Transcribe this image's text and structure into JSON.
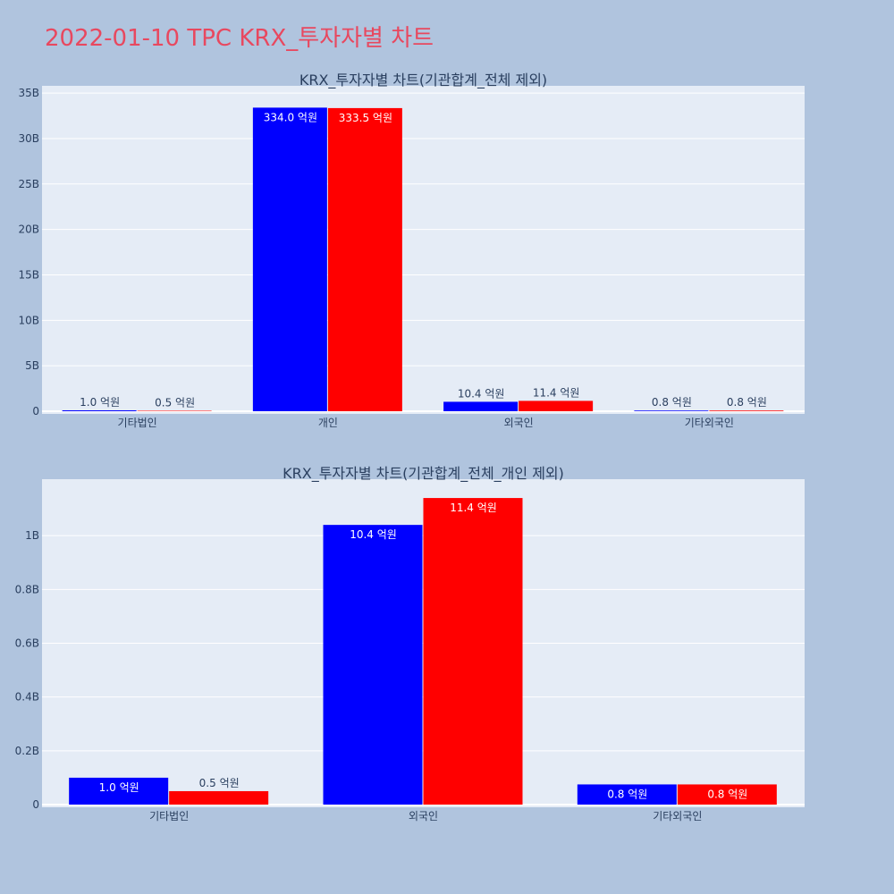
{
  "page": {
    "title": "2022-01-10 TPC KRX_투자자별 차트"
  },
  "colors": {
    "background": "#b0c4de",
    "plot_bg": "#e5ecf6",
    "grid": "#ffffff",
    "series_a": "#0000ff",
    "series_b": "#ff0000",
    "title": "#e8485f"
  },
  "chart_data": [
    {
      "type": "bar",
      "title": "KRX_투자자별 차트(기관합계_전체 제외)",
      "categories": [
        "기타법인",
        "개인",
        "외국인",
        "기타외국인"
      ],
      "ylim": [
        0,
        35800000000
      ],
      "yticks": [
        {
          "value": 0,
          "label": "0"
        },
        {
          "value": 5000000000,
          "label": "5B"
        },
        {
          "value": 10000000000,
          "label": "10B"
        },
        {
          "value": 15000000000,
          "label": "15B"
        },
        {
          "value": 20000000000,
          "label": "20B"
        },
        {
          "value": 25000000000,
          "label": "25B"
        },
        {
          "value": 30000000000,
          "label": "30B"
        },
        {
          "value": 35000000000,
          "label": "35B"
        }
      ],
      "grid": true,
      "series": [
        {
          "color": "#0000ff",
          "values": [
            100000000,
            33400000000,
            1040000000,
            75000000
          ],
          "labels": [
            "1.0 억원",
            "334.0 억원",
            "10.4 억원",
            "0.8 억원"
          ]
        },
        {
          "color": "#ff0000",
          "values": [
            50000000,
            33350000000,
            1140000000,
            75000000
          ],
          "labels": [
            "0.5 억원",
            "333.5 억원",
            "11.4 억원",
            "0.8 억원"
          ]
        }
      ]
    },
    {
      "type": "bar",
      "title": "KRX_투자자별 차트(기관합계_전체_개인 제외)",
      "categories": [
        "기타법인",
        "외국인",
        "기타외국인"
      ],
      "ylim": [
        0,
        1210000000
      ],
      "yticks": [
        {
          "value": 0,
          "label": "0"
        },
        {
          "value": 200000000,
          "label": "0.2B"
        },
        {
          "value": 400000000,
          "label": "0.4B"
        },
        {
          "value": 600000000,
          "label": "0.6B"
        },
        {
          "value": 800000000,
          "label": "0.8B"
        },
        {
          "value": 1000000000,
          "label": "1B"
        }
      ],
      "grid": true,
      "series": [
        {
          "color": "#0000ff",
          "values": [
            100000000,
            1040000000,
            75000000
          ],
          "labels": [
            "1.0 억원",
            "10.4 억원",
            "0.8 억원"
          ]
        },
        {
          "color": "#ff0000",
          "values": [
            50000000,
            1140000000,
            75000000
          ],
          "labels": [
            "0.5 억원",
            "11.4 억원",
            "0.8 억원"
          ]
        }
      ]
    }
  ]
}
